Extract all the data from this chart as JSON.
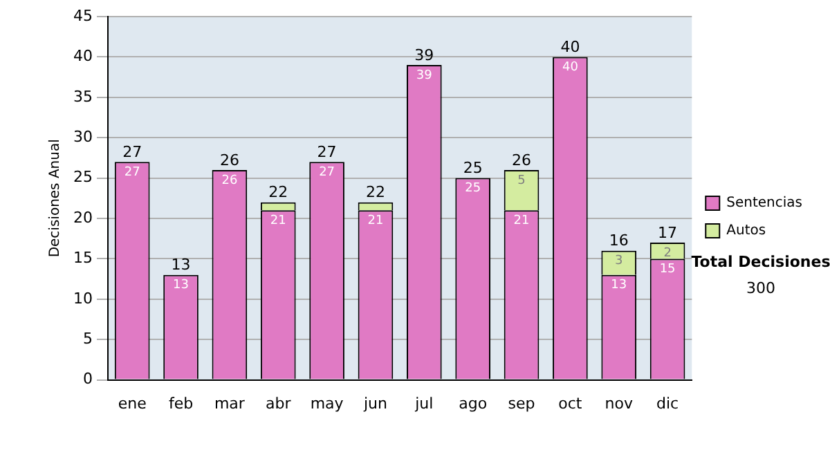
{
  "chart_data": {
    "type": "bar",
    "stacked": true,
    "ylabel": "Decisiones Anual",
    "categories": [
      "ene",
      "feb",
      "mar",
      "abr",
      "may",
      "jun",
      "jul",
      "ago",
      "sep",
      "oct",
      "nov",
      "dic"
    ],
    "series": [
      {
        "name": "Sentencias",
        "color": "#e07ac4",
        "values": [
          27,
          13,
          26,
          21,
          27,
          21,
          39,
          25,
          21,
          40,
          13,
          15
        ],
        "value_labels": [
          "27",
          "13",
          "26",
          "21",
          "27",
          "21",
          "39",
          "25",
          "21",
          "40",
          "13",
          "15"
        ]
      },
      {
        "name": "Autos",
        "color": "#d4eca0",
        "values": [
          null,
          null,
          null,
          1,
          null,
          1,
          null,
          null,
          5,
          null,
          3,
          2
        ],
        "value_labels": [
          null,
          null,
          null,
          null,
          null,
          null,
          null,
          null,
          "5",
          null,
          "3",
          "2"
        ]
      }
    ],
    "totals": [
      "27",
      "13",
      "26",
      "22",
      "27",
      "22",
      "39",
      "25",
      "26",
      "40",
      "16",
      "17"
    ],
    "ylim": [
      0,
      45
    ],
    "yticks": [
      0,
      5,
      10,
      15,
      20,
      25,
      30,
      35,
      40,
      45
    ],
    "grid": "y",
    "legend": "right",
    "annotations": [
      "Total Decisiones",
      "300"
    ]
  }
}
